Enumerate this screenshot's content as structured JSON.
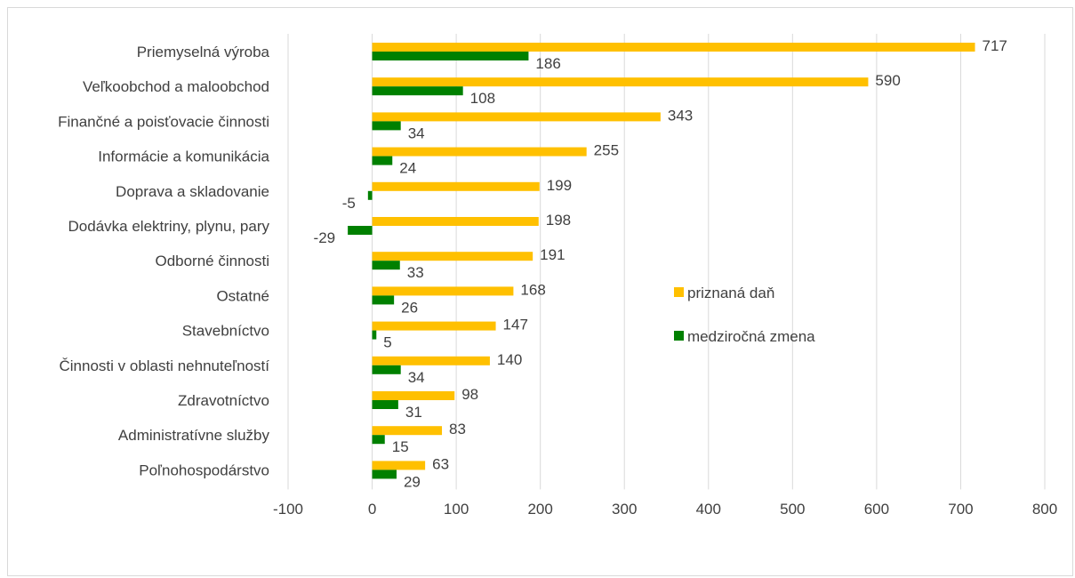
{
  "chart_data": {
    "type": "bar",
    "orientation": "horizontal",
    "categories": [
      "Priemyselná výroba",
      "Veľkoobchod a maloobchod",
      "Finančné a poisťovacie činnosti",
      "Informácie a komunikácia",
      "Doprava a skladovanie",
      "Dodávka elektriny, plynu, pary",
      "Odborné činnosti",
      "Ostatné",
      "Stavebníctvo",
      "Činnosti v oblasti nehnuteľností",
      "Zdravotníctvo",
      "Administratívne služby",
      "Poľnohospodárstvo"
    ],
    "series": [
      {
        "name": "priznaná daň",
        "color": "#FFC000",
        "values": [
          717,
          590,
          343,
          255,
          199,
          198,
          191,
          168,
          147,
          140,
          98,
          83,
          63
        ],
        "labels": [
          "717",
          "590",
          "343",
          "255",
          "199",
          "198",
          "191",
          "168",
          "147",
          "140",
          "98",
          "83",
          "63"
        ]
      },
      {
        "name": "medziročná zmena",
        "color": "#008000",
        "values": [
          186,
          108,
          34,
          24,
          -5,
          -29,
          33,
          26,
          5,
          34,
          31,
          15,
          29
        ],
        "labels": [
          "186",
          "108",
          "34",
          "24",
          "-5",
          "-29",
          "33",
          "26",
          "5",
          "34",
          "31",
          "15",
          "29"
        ]
      }
    ],
    "xlim": [
      -100,
      800
    ],
    "xticks": [
      -100,
      0,
      100,
      200,
      300,
      400,
      500,
      600,
      700,
      800
    ],
    "xtick_labels": [
      "-100",
      "0",
      "100",
      "200",
      "300",
      "400",
      "500",
      "600",
      "700",
      "800"
    ],
    "grid": "vertical",
    "legend_position": "right-center",
    "title": "",
    "xlabel": "",
    "ylabel": ""
  }
}
